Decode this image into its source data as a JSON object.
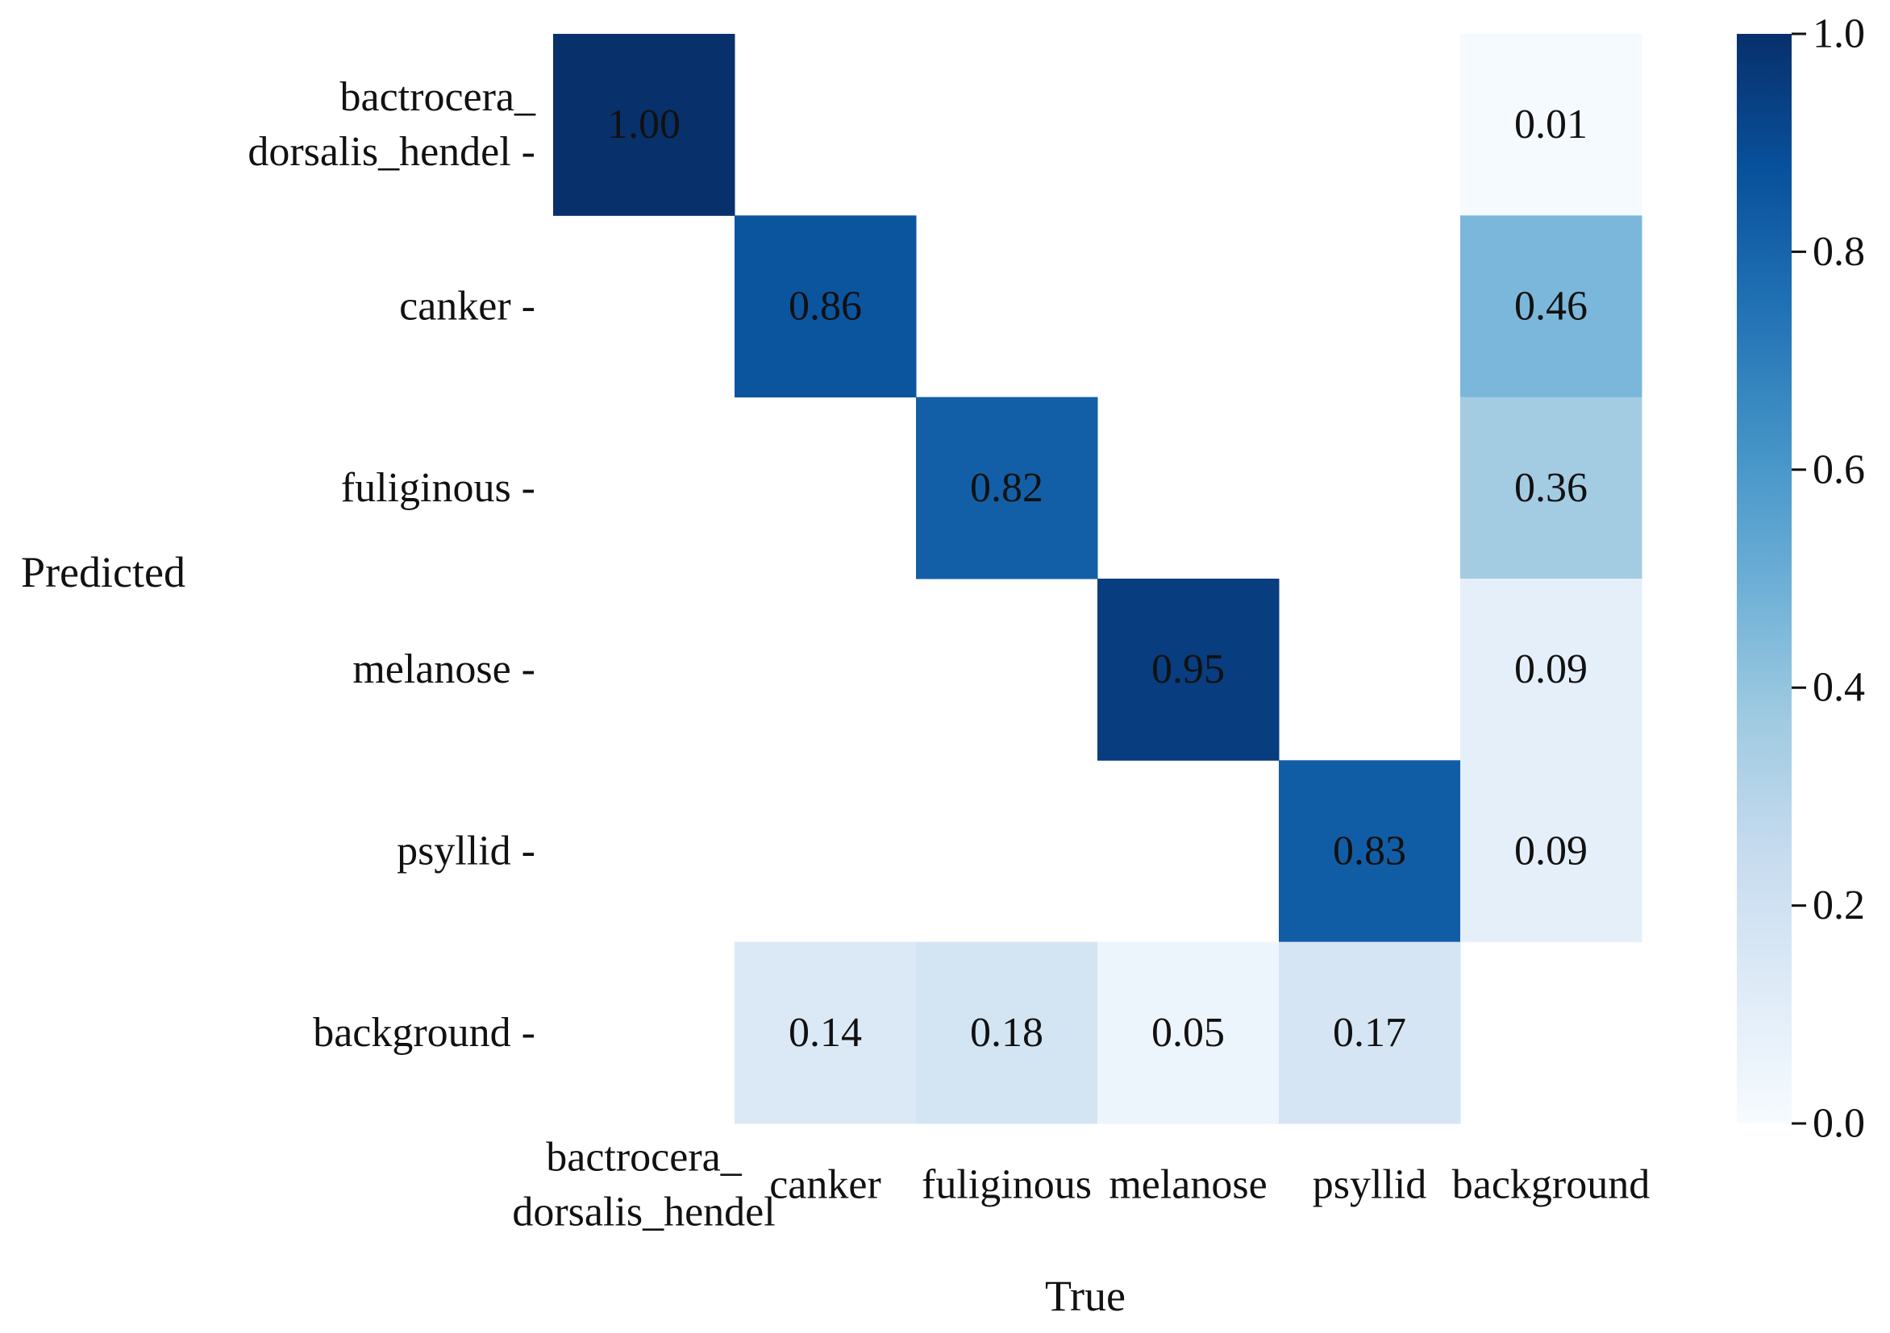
{
  "chart_data": {
    "type": "heatmap",
    "xlabel": "True",
    "ylabel": "Predicted",
    "x_categories": [
      [
        "bactrocera_",
        "dorsalis_hendel"
      ],
      [
        "canker"
      ],
      [
        "fuliginous"
      ],
      [
        "melanose"
      ],
      [
        "psyllid"
      ],
      [
        "background"
      ]
    ],
    "y_categories": [
      [
        "bactrocera_",
        "dorsalis_hendel -"
      ],
      [
        "canker -"
      ],
      [
        "fuliginous -"
      ],
      [
        "melanose -"
      ],
      [
        "psyllid -"
      ],
      [
        "background -"
      ]
    ],
    "values": [
      [
        1.0,
        null,
        null,
        null,
        null,
        0.01
      ],
      [
        null,
        0.86,
        null,
        null,
        null,
        0.46
      ],
      [
        null,
        null,
        0.82,
        null,
        null,
        0.36
      ],
      [
        null,
        null,
        null,
        0.95,
        null,
        0.09
      ],
      [
        null,
        null,
        null,
        null,
        0.83,
        0.09
      ],
      [
        null,
        0.14,
        0.18,
        0.05,
        0.17,
        null
      ]
    ],
    "value_labels": [
      [
        "1.00",
        "",
        "",
        "",
        "",
        "0.01"
      ],
      [
        "",
        "0.86",
        "",
        "",
        "",
        "0.46"
      ],
      [
        "",
        "",
        "0.82",
        "",
        "",
        "0.36"
      ],
      [
        "",
        "",
        "",
        "0.95",
        "",
        "0.09"
      ],
      [
        "",
        "",
        "",
        "",
        "0.83",
        "0.09"
      ],
      [
        "",
        "0.14",
        "0.18",
        "0.05",
        "0.17",
        ""
      ]
    ],
    "colorbar": {
      "range": [
        0.0,
        1.0
      ],
      "ticks": [
        0.0,
        0.2,
        0.4,
        0.6,
        0.8,
        1.0
      ],
      "tick_labels": [
        "0.0",
        "0.2",
        "0.4",
        "0.6",
        "0.8",
        "1.0"
      ],
      "colormap": "Blues"
    },
    "grid": false
  }
}
